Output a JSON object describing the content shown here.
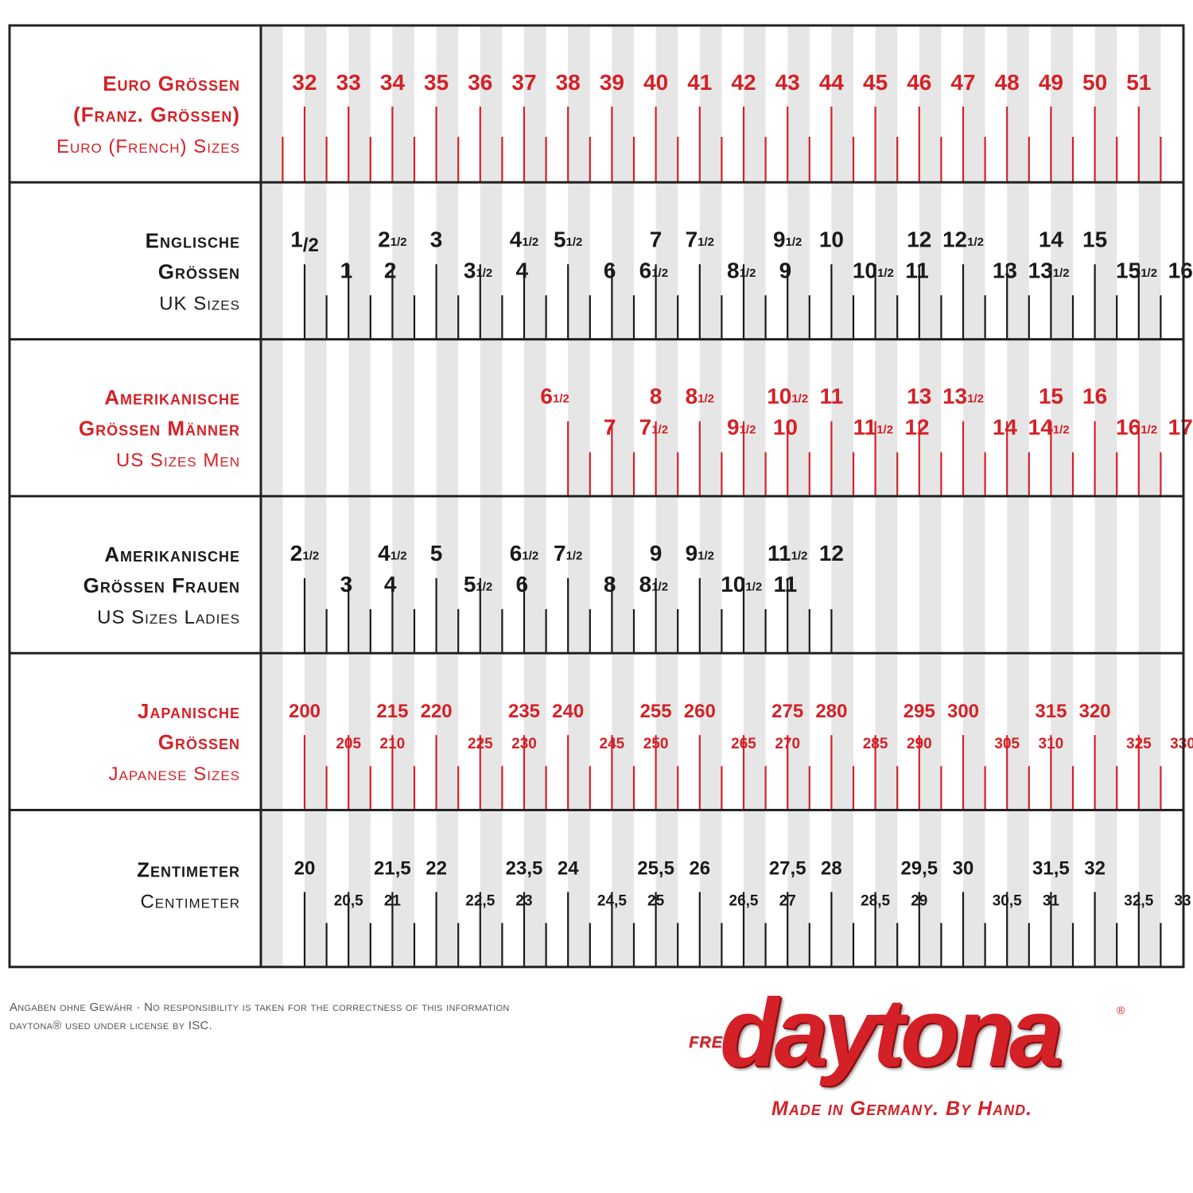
{
  "colors": {
    "red": "#d42127",
    "black": "#1a1a1a",
    "stripe": "#e6e6e6",
    "border": "#222222"
  },
  "chart_data": {
    "type": "table",
    "title": "",
    "rows": [
      {
        "name": "euro",
        "color": "red",
        "label_lines": [
          "Euro Grössen",
          "(Franz. Grössen)",
          "Euro (French) Sizes"
        ],
        "top_labels": [
          {
            "pos": 0,
            "n": "32"
          },
          {
            "pos": 1,
            "n": "33"
          },
          {
            "pos": 2,
            "n": "34"
          },
          {
            "pos": 3,
            "n": "35"
          },
          {
            "pos": 4,
            "n": "36"
          },
          {
            "pos": 5,
            "n": "37"
          },
          {
            "pos": 6,
            "n": "38"
          },
          {
            "pos": 7,
            "n": "39"
          },
          {
            "pos": 8,
            "n": "40"
          },
          {
            "pos": 9,
            "n": "41"
          },
          {
            "pos": 10,
            "n": "42"
          },
          {
            "pos": 11,
            "n": "43"
          },
          {
            "pos": 12,
            "n": "44"
          },
          {
            "pos": 13,
            "n": "45"
          },
          {
            "pos": 14,
            "n": "46"
          },
          {
            "pos": 15,
            "n": "47"
          },
          {
            "pos": 16,
            "n": "48"
          },
          {
            "pos": 17,
            "n": "49"
          },
          {
            "pos": 18,
            "n": "50"
          },
          {
            "pos": 19,
            "n": "51"
          }
        ],
        "bottom_labels": [],
        "tick_range": [
          -0.5,
          19.5
        ]
      },
      {
        "name": "uk",
        "color": "black",
        "label_lines": [
          "Englische",
          "Grössen",
          "UK Sizes"
        ],
        "top_labels": [
          {
            "pos": 0,
            "n": "1",
            "sub": "/2"
          },
          {
            "pos": 2,
            "n": "2",
            "frac": "1/2"
          },
          {
            "pos": 3,
            "n": "3"
          },
          {
            "pos": 5,
            "n": "4",
            "frac": "1/2"
          },
          {
            "pos": 6,
            "n": "5",
            "frac": "1/2"
          },
          {
            "pos": 8,
            "n": "7"
          },
          {
            "pos": 9,
            "n": "7",
            "frac": "1/2"
          },
          {
            "pos": 11,
            "n": "9",
            "frac": "1/2"
          },
          {
            "pos": 12,
            "n": "10"
          },
          {
            "pos": 14,
            "n": "12"
          },
          {
            "pos": 15,
            "n": "12",
            "frac": "1/2"
          },
          {
            "pos": 17,
            "n": "14"
          },
          {
            "pos": 18,
            "n": "15"
          }
        ],
        "bottom_labels": [
          {
            "pos": 0.5,
            "n": "1"
          },
          {
            "pos": 1.5,
            "n": "2"
          },
          {
            "pos": 3.5,
            "n": "3",
            "frac": "1/2"
          },
          {
            "pos": 4.5,
            "n": "4"
          },
          {
            "pos": 6.5,
            "n": "6"
          },
          {
            "pos": 7.5,
            "n": "6",
            "frac": "1/2"
          },
          {
            "pos": 9.5,
            "n": "8",
            "frac": "1/2"
          },
          {
            "pos": 10.5,
            "n": "9"
          },
          {
            "pos": 12.5,
            "n": "10",
            "frac": "1/2"
          },
          {
            "pos": 13.5,
            "n": "11"
          },
          {
            "pos": 15.5,
            "n": "13"
          },
          {
            "pos": 16.5,
            "n": "13",
            "frac": "1/2"
          },
          {
            "pos": 18.5,
            "n": "15",
            "frac": "1/2"
          },
          {
            "pos": 19.5,
            "n": "16"
          }
        ],
        "tick_range": [
          0,
          19.5
        ]
      },
      {
        "name": "us-men",
        "color": "red",
        "label_lines": [
          "Amerikanische",
          "Grössen Männer",
          "US Sizes Men"
        ],
        "top_labels": [
          {
            "pos": 5.7,
            "n": "6",
            "frac": "1/2"
          },
          {
            "pos": 8,
            "n": "8"
          },
          {
            "pos": 9,
            "n": "8",
            "frac": "1/2"
          },
          {
            "pos": 11,
            "n": "10",
            "frac": "1/2"
          },
          {
            "pos": 12,
            "n": "11"
          },
          {
            "pos": 14,
            "n": "13"
          },
          {
            "pos": 15,
            "n": "13",
            "frac": "1/2"
          },
          {
            "pos": 17,
            "n": "15"
          },
          {
            "pos": 18,
            "n": "16"
          }
        ],
        "bottom_labels": [
          {
            "pos": 6.5,
            "n": "7"
          },
          {
            "pos": 7.5,
            "n": "7",
            "frac": "1/2"
          },
          {
            "pos": 9.5,
            "n": "9",
            "frac": "1/2"
          },
          {
            "pos": 10.5,
            "n": "10"
          },
          {
            "pos": 12.5,
            "n": "11",
            "frac": "1/2"
          },
          {
            "pos": 13.5,
            "n": "12"
          },
          {
            "pos": 15.5,
            "n": "14"
          },
          {
            "pos": 16.5,
            "n": "14",
            "frac": "1/2"
          },
          {
            "pos": 18.5,
            "n": "16",
            "frac": "1/2"
          },
          {
            "pos": 19.5,
            "n": "17"
          }
        ],
        "tick_range": [
          6,
          19.5
        ]
      },
      {
        "name": "us-ladies",
        "color": "black",
        "label_lines": [
          "Amerikanische",
          "Grössen Frauen",
          "US Sizes Ladies"
        ],
        "top_labels": [
          {
            "pos": 0,
            "n": "2",
            "frac": "1/2"
          },
          {
            "pos": 2,
            "n": "4",
            "frac": "1/2"
          },
          {
            "pos": 3,
            "n": "5"
          },
          {
            "pos": 5,
            "n": "6",
            "frac": "1/2"
          },
          {
            "pos": 6,
            "n": "7",
            "frac": "1/2"
          },
          {
            "pos": 8,
            "n": "9"
          },
          {
            "pos": 9,
            "n": "9",
            "frac": "1/2"
          },
          {
            "pos": 11,
            "n": "11",
            "frac": "1/2"
          },
          {
            "pos": 12,
            "n": "12"
          }
        ],
        "bottom_labels": [
          {
            "pos": 0.5,
            "n": "3"
          },
          {
            "pos": 1.5,
            "n": "4"
          },
          {
            "pos": 3.5,
            "n": "5",
            "frac": "1/2"
          },
          {
            "pos": 4.5,
            "n": "6"
          },
          {
            "pos": 6.5,
            "n": "8"
          },
          {
            "pos": 7.5,
            "n": "8",
            "frac": "1/2"
          },
          {
            "pos": 9.5,
            "n": "10",
            "frac": "1/2"
          },
          {
            "pos": 10.5,
            "n": "11"
          }
        ],
        "tick_range": [
          0,
          12
        ]
      },
      {
        "name": "japan",
        "color": "red",
        "label_lines": [
          "Japanische",
          "Grössen",
          "Japanese Sizes"
        ],
        "top_labels": [
          {
            "pos": 0,
            "n": "200"
          },
          {
            "pos": 2,
            "n": "215"
          },
          {
            "pos": 3,
            "n": "220"
          },
          {
            "pos": 5,
            "n": "235"
          },
          {
            "pos": 6,
            "n": "240"
          },
          {
            "pos": 8,
            "n": "255"
          },
          {
            "pos": 9,
            "n": "260"
          },
          {
            "pos": 11,
            "n": "275"
          },
          {
            "pos": 12,
            "n": "280"
          },
          {
            "pos": 14,
            "n": "295"
          },
          {
            "pos": 15,
            "n": "300"
          },
          {
            "pos": 17,
            "n": "315"
          },
          {
            "pos": 18,
            "n": "320"
          }
        ],
        "bottom_labels": [
          {
            "pos": 0.5,
            "n": "205"
          },
          {
            "pos": 1.5,
            "n": "210"
          },
          {
            "pos": 3.5,
            "n": "225"
          },
          {
            "pos": 4.5,
            "n": "230"
          },
          {
            "pos": 6.5,
            "n": "245"
          },
          {
            "pos": 7.5,
            "n": "250"
          },
          {
            "pos": 9.5,
            "n": "265"
          },
          {
            "pos": 10.5,
            "n": "270"
          },
          {
            "pos": 12.5,
            "n": "285"
          },
          {
            "pos": 13.5,
            "n": "290"
          },
          {
            "pos": 15.5,
            "n": "305"
          },
          {
            "pos": 16.5,
            "n": "310"
          },
          {
            "pos": 18.5,
            "n": "325"
          },
          {
            "pos": 19.5,
            "n": "330"
          }
        ],
        "tick_range": [
          0,
          19.5
        ]
      },
      {
        "name": "cm",
        "color": "black",
        "label_lines": [
          "Zentimeter",
          "Centimeter"
        ],
        "top_labels": [
          {
            "pos": 0,
            "n": "20"
          },
          {
            "pos": 2,
            "n": "21,5"
          },
          {
            "pos": 3,
            "n": "22"
          },
          {
            "pos": 5,
            "n": "23,5"
          },
          {
            "pos": 6,
            "n": "24"
          },
          {
            "pos": 8,
            "n": "25,5"
          },
          {
            "pos": 9,
            "n": "26"
          },
          {
            "pos": 11,
            "n": "27,5"
          },
          {
            "pos": 12,
            "n": "28"
          },
          {
            "pos": 14,
            "n": "29,5"
          },
          {
            "pos": 15,
            "n": "30"
          },
          {
            "pos": 17,
            "n": "31,5"
          },
          {
            "pos": 18,
            "n": "32"
          }
        ],
        "bottom_labels": [
          {
            "pos": 0.5,
            "n": "20,5"
          },
          {
            "pos": 1.5,
            "n": "21"
          },
          {
            "pos": 3.5,
            "n": "22,5"
          },
          {
            "pos": 4.5,
            "n": "23"
          },
          {
            "pos": 6.5,
            "n": "24,5"
          },
          {
            "pos": 7.5,
            "n": "25"
          },
          {
            "pos": 9.5,
            "n": "26,5"
          },
          {
            "pos": 10.5,
            "n": "27"
          },
          {
            "pos": 12.5,
            "n": "28,5"
          },
          {
            "pos": 13.5,
            "n": "29"
          },
          {
            "pos": 15.5,
            "n": "30,5"
          },
          {
            "pos": 16.5,
            "n": "31"
          },
          {
            "pos": 18.5,
            "n": "32,5"
          },
          {
            "pos": 19.5,
            "n": "33"
          }
        ],
        "tick_range": [
          0,
          19.5
        ]
      }
    ]
  },
  "footer": {
    "line1": "Angaben ohne Gewähr · No responsibility is taken for the correctness of this information",
    "line2": "daytona® used under license by ISC."
  },
  "logo": {
    "brand": "daytona",
    "prefix": "FREY",
    "reg": "®",
    "tagline": "Made in Germany. By Hand."
  }
}
